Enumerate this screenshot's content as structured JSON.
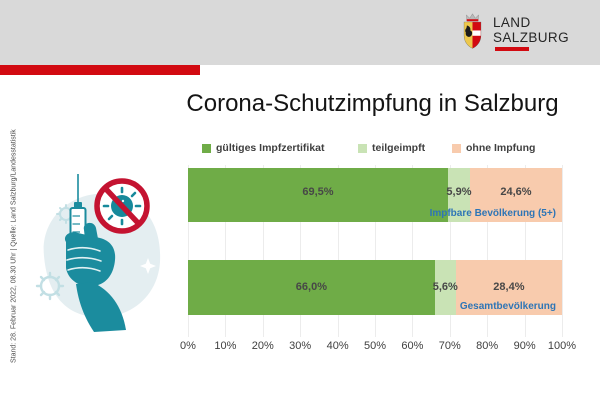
{
  "header": {
    "logo": {
      "line1": "LAND",
      "line2": "SALZBURG"
    },
    "band_color": "#d9d9d9",
    "accent_color": "#d20a11"
  },
  "sidebar": {
    "source_note": "Stand: 28. Februar 2022, 08.30 Uhr | Quelle: Land Salzburg/Landesstatistik"
  },
  "title": "Corona-Schutzimpfung in Salzburg",
  "chart_data": {
    "type": "bar",
    "orientation": "horizontal-stacked",
    "title": "Corona-Schutzimpfung in Salzburg",
    "categories": [
      "Impfbare Bevölkerung (5+)",
      "Gesamtbevölkerung"
    ],
    "series": [
      {
        "name": "gültiges Impfzertifikat",
        "color": "#6fac47",
        "values": [
          69.5,
          66.0
        ]
      },
      {
        "name": "teilgeimpft",
        "color": "#c9e3b5",
        "values": [
          5.9,
          5.6
        ]
      },
      {
        "name": "ohne Impfung",
        "color": "#f8cbad",
        "values": [
          24.6,
          28.4
        ]
      }
    ],
    "value_labels": [
      [
        "69,5%",
        "5,9%",
        "24,6%"
      ],
      [
        "66,0%",
        "5,6%",
        "28,4%"
      ]
    ],
    "x_ticks": [
      "0%",
      "10%",
      "20%",
      "30%",
      "40%",
      "50%",
      "60%",
      "70%",
      "80%",
      "90%",
      "100%"
    ],
    "xlim": [
      0,
      100
    ],
    "grid": true,
    "legend_position": "top",
    "category_label_color": "#2e75b6",
    "value_label_color": "#474747"
  },
  "icons": {
    "crest": "salzburg-coat-of-arms",
    "illustration": "hand-holding-syringe-no-virus"
  }
}
